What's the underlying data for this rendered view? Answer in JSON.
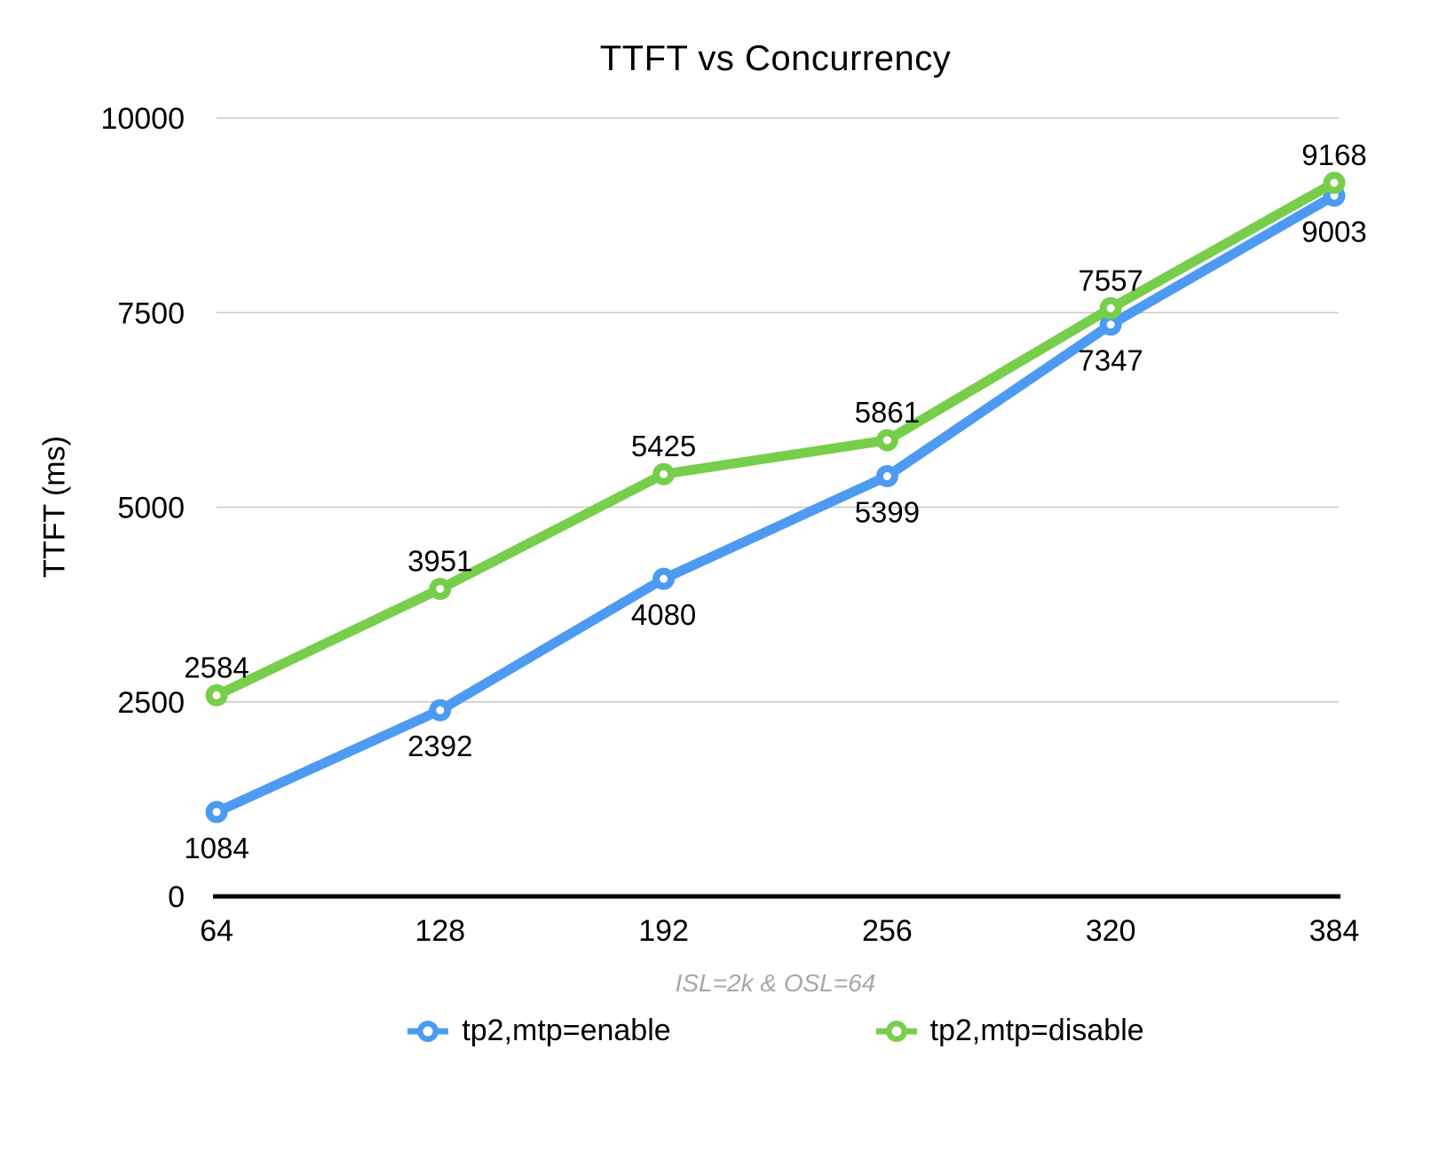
{
  "chart_data": {
    "type": "line",
    "title": "TTFT vs Concurrency",
    "ylabel": "TTFT (ms)",
    "xlabel": "",
    "caption": "ISL=2k & OSL=64",
    "categories": [
      "64",
      "128",
      "192",
      "256",
      "320",
      "384"
    ],
    "series": [
      {
        "name": "tp2,mtp=enable",
        "color": "#4D9AF2",
        "values": [
          1084,
          2392,
          4080,
          5399,
          7347,
          9003
        ],
        "label_placement": "below"
      },
      {
        "name": "tp2,mtp=disable",
        "color": "#77CE4B",
        "values": [
          2584,
          3951,
          5425,
          5861,
          7557,
          9168
        ],
        "label_placement": "above"
      }
    ],
    "y_axis": {
      "min": 0,
      "max": 10000,
      "ticks": [
        0,
        2500,
        5000,
        7500,
        10000
      ]
    },
    "grid": true,
    "legend_position": "bottom",
    "colors": {
      "gridline": "#C8C8C8",
      "axis_line": "#000000",
      "data_label": "#000000",
      "caption_text": "#A8A8A8",
      "marker_hole": "#FFFFFF",
      "background": "#FFFFFF"
    }
  }
}
